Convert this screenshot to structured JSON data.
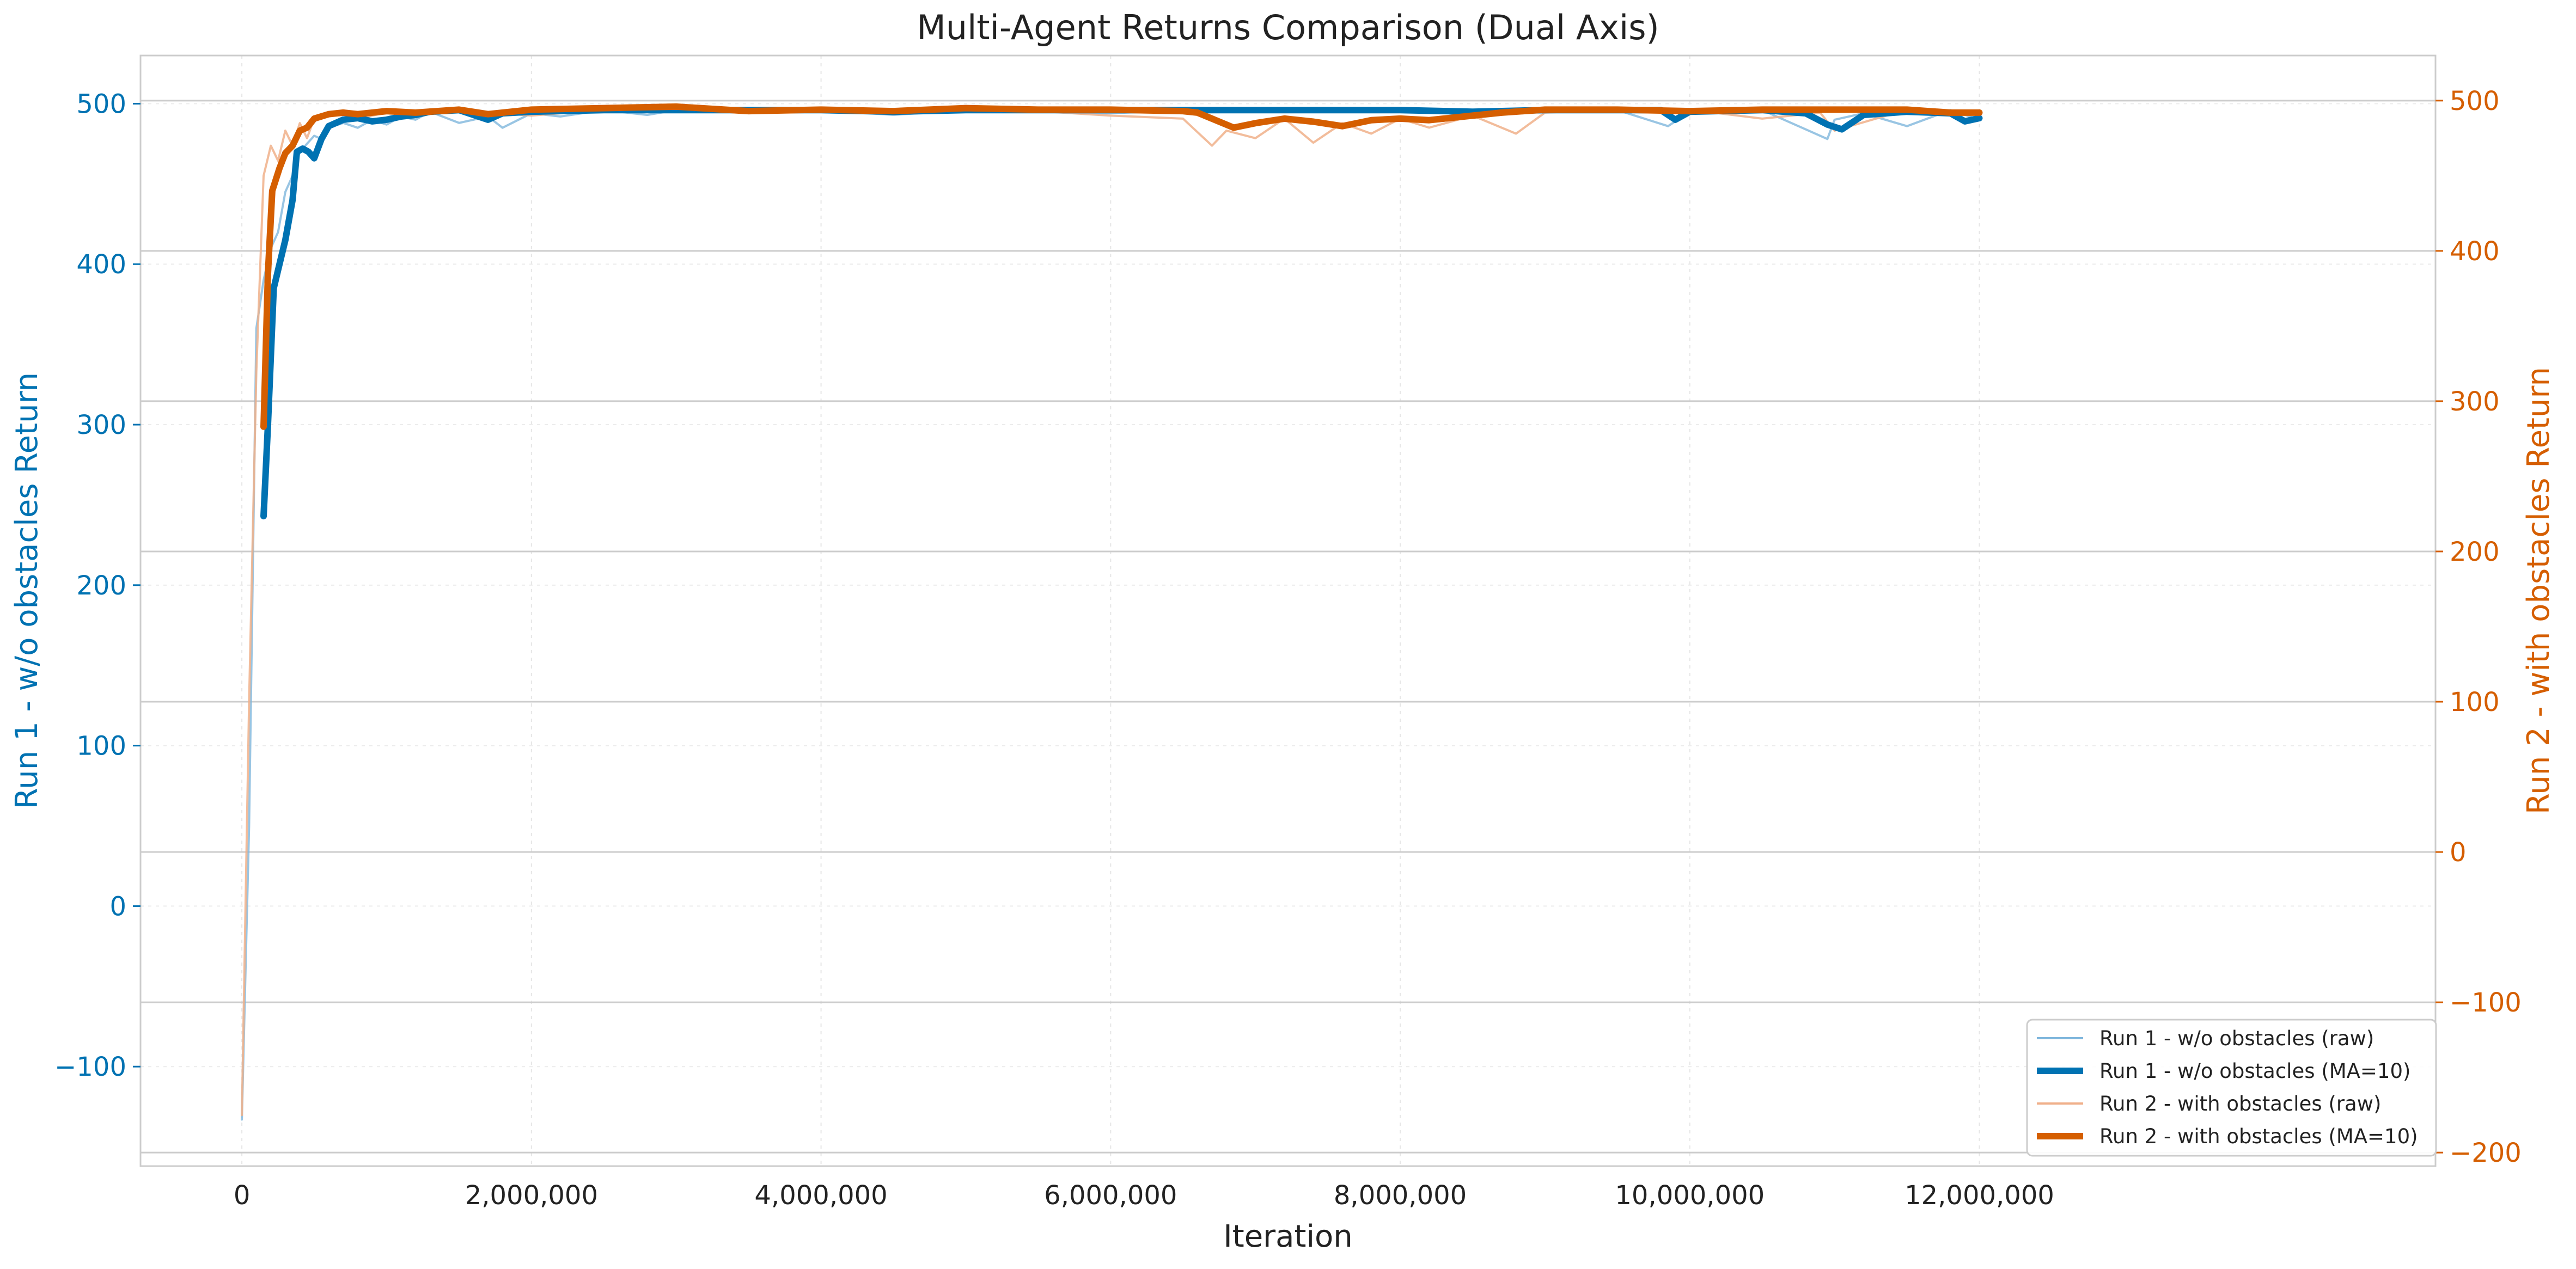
{
  "colors": {
    "run1": "#0072B2",
    "run1_raw": "#7fb6dc",
    "run2": "#D55E00",
    "run2_raw": "#f0b08a",
    "grid": "#cccccc",
    "frame": "#cccccc",
    "text": "#222222"
  },
  "chart_data": {
    "type": "line",
    "title": "Multi-Agent Returns Comparison (Dual Axis)",
    "xlabel": "Iteration",
    "ylabel_left": "Run 1 - w/o obstacles Return",
    "ylabel_right": "Run 2 - with obstacles Return",
    "xlim": [
      -700000,
      15150000
    ],
    "ylim_left": [
      -162,
      530
    ],
    "ylim_right": [
      -209,
      530
    ],
    "x_ticks": [
      0,
      2000000,
      4000000,
      6000000,
      8000000,
      10000000,
      12000000
    ],
    "x_tick_labels": [
      "0",
      "2,000,000",
      "4,000,000",
      "6,000,000",
      "8,000,000",
      "10,000,000",
      "12,000,000"
    ],
    "y_left_ticks": [
      -100,
      0,
      100,
      200,
      300,
      400,
      500
    ],
    "y_left_tick_labels": [
      "−100",
      "0",
      "100",
      "200",
      "300",
      "400",
      "500"
    ],
    "y_right_ticks": [
      -200,
      -100,
      0,
      100,
      200,
      300,
      400,
      500
    ],
    "y_right_tick_labels": [
      "−200",
      "−100",
      "0",
      "100",
      "200",
      "300",
      "400",
      "500"
    ],
    "grid": true,
    "legend_position": "bottom-right",
    "legend": [
      "Run 1 - w/o obstacles (raw)",
      "Run 1 - w/o obstacles (MA=10)",
      "Run 2 - with obstacles (raw)",
      "Run 2 - with obstacles (MA=10)"
    ],
    "series": [
      {
        "name": "Run 1 - w/o obstacles (raw)",
        "axis": "left",
        "style": "raw",
        "x": [
          0,
          50000,
          100000,
          150000,
          200000,
          250000,
          300000,
          350000,
          400000,
          450000,
          500000,
          550000,
          600000,
          700000,
          800000,
          900000,
          1000000,
          1100000,
          1200000,
          1300000,
          1500000,
          1700000,
          1800000,
          2000000,
          2200000,
          2500000,
          2800000,
          3000000,
          3500000,
          4000000,
          4500000,
          5000000,
          5500000,
          6000000,
          6500000,
          7000000,
          7500000,
          8000000,
          8500000,
          9000000,
          9500000,
          9850000,
          10000000,
          10500000,
          10950000,
          11000000,
          11200000,
          11500000,
          11800000,
          12000000
        ],
        "y": [
          -133,
          50,
          360,
          390,
          410,
          420,
          445,
          455,
          470,
          475,
          480,
          478,
          485,
          488,
          485,
          490,
          487,
          492,
          490,
          495,
          488,
          492,
          485,
          494,
          492,
          496,
          493,
          496,
          495,
          496,
          493,
          496,
          495,
          494,
          496,
          495,
          496,
          496,
          494,
          495,
          496,
          486,
          495,
          496,
          478,
          490,
          494,
          486,
          496,
          490
        ]
      },
      {
        "name": "Run 1 - w/o obstacles (MA=10)",
        "axis": "left",
        "style": "ma",
        "x": [
          150000,
          180000,
          220000,
          260000,
          300000,
          350000,
          380000,
          420000,
          460000,
          500000,
          550000,
          600000,
          700000,
          800000,
          900000,
          1000000,
          1100000,
          1200000,
          1300000,
          1500000,
          1700000,
          1800000,
          2000000,
          2500000,
          3000000,
          3500000,
          4000000,
          4500000,
          5000000,
          5500000,
          6000000,
          6500000,
          7000000,
          7500000,
          8000000,
          8500000,
          9000000,
          9500000,
          9800000,
          9900000,
          10000000,
          10500000,
          10800000,
          10950000,
          11050000,
          11200000,
          11500000,
          11800000,
          11900000,
          12000000
        ],
        "y": [
          243,
          300,
          385,
          400,
          415,
          440,
          470,
          472,
          470,
          466,
          478,
          486,
          490,
          491,
          489,
          490,
          492,
          493,
          495,
          496,
          490,
          494,
          495,
          496,
          496,
          496,
          496,
          495,
          496,
          496,
          496,
          496,
          496,
          496,
          496,
          495,
          496,
          496,
          496,
          490,
          495,
          496,
          494,
          487,
          484,
          493,
          495,
          494,
          489,
          491
        ]
      },
      {
        "name": "Run 2 - with obstacles (raw)",
        "axis": "right",
        "style": "raw",
        "x": [
          0,
          50000,
          100000,
          150000,
          200000,
          250000,
          300000,
          350000,
          400000,
          450000,
          500000,
          600000,
          700000,
          800000,
          1000000,
          1200000,
          1500000,
          2000000,
          2500000,
          3000000,
          3500000,
          4000000,
          4500000,
          5000000,
          5500000,
          6000000,
          6500000,
          6700000,
          6800000,
          7000000,
          7200000,
          7400000,
          7600000,
          7800000,
          8000000,
          8200000,
          8500000,
          8800000,
          9000000,
          9500000,
          10000000,
          10500000,
          10900000,
          11000000,
          11500000,
          12000000
        ],
        "y": [
          -175,
          100,
          320,
          450,
          470,
          460,
          480,
          470,
          485,
          475,
          488,
          490,
          492,
          488,
          492,
          490,
          494,
          490,
          494,
          495,
          492,
          494,
          492,
          495,
          493,
          490,
          488,
          470,
          480,
          475,
          488,
          472,
          485,
          478,
          488,
          482,
          490,
          478,
          492,
          494,
          494,
          488,
          492,
          480,
          494,
          492
        ]
      },
      {
        "name": "Run 2 - with obstacles (MA=10)",
        "axis": "right",
        "style": "ma",
        "x": [
          150000,
          180000,
          210000,
          260000,
          300000,
          350000,
          400000,
          450000,
          500000,
          600000,
          700000,
          800000,
          1000000,
          1200000,
          1500000,
          1700000,
          2000000,
          2500000,
          3000000,
          3500000,
          4000000,
          4500000,
          5000000,
          5500000,
          6000000,
          6500000,
          6600000,
          6700000,
          6850000,
          7000000,
          7200000,
          7400000,
          7600000,
          7800000,
          8000000,
          8200000,
          8500000,
          8700000,
          9000000,
          9500000,
          10000000,
          10500000,
          11000000,
          11500000,
          11800000,
          12000000
        ],
        "y": [
          283,
          385,
          440,
          455,
          465,
          470,
          480,
          482,
          488,
          491,
          492,
          491,
          493,
          492,
          494,
          491,
          494,
          495,
          496,
          493,
          494,
          493,
          495,
          494,
          494,
          493,
          492,
          488,
          482,
          485,
          488,
          486,
          483,
          487,
          488,
          487,
          490,
          492,
          494,
          494,
          493,
          494,
          494,
          494,
          492,
          492
        ]
      }
    ]
  }
}
